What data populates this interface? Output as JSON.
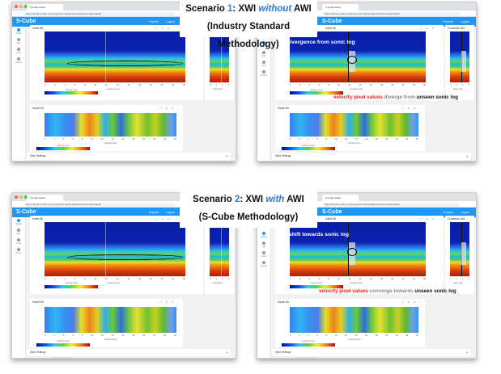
{
  "captions": [
    {
      "line1": {
        "pre": "Scenario ",
        "num": "1",
        "mid": ": XWI ",
        "em": "without",
        "post": " AWI"
      },
      "line2": "(Industry Standard Methodology)"
    },
    {
      "line1": {
        "pre": "Scenario ",
        "num": "2",
        "mid": ": XWI ",
        "em": "with",
        "post": " AWI"
      },
      "line2": "(S-Cube Methodology)"
    }
  ],
  "annotations": {
    "s1": {
      "title": "divergence from sonic log",
      "a": "velocity pixel values",
      "b": " diverge from ",
      "c": "unseen sonic log"
    },
    "s2": {
      "title": "shift towards sonic log",
      "a": "velocity pixel values",
      "b": " converge towards ",
      "c": "unseen sonic log"
    }
  },
  "app": {
    "browser_tab": "S-Cube Cloud",
    "url": "https://cloud.s-cube.com/projects/model/iteration/inline/crossline/depth",
    "logo": "S-Cube",
    "header_links": [
      "Projects",
      "Logout"
    ],
    "sidebar": [
      "Model",
      "Edit",
      "Tools",
      "Shares"
    ],
    "inline_title": "Inline 80",
    "crossline_title": "Crossline 440",
    "depth_title": "Depth 80",
    "inline_xlabel": "crossline (km)",
    "crossline_xlabel": "inline (km)",
    "depth_xlabel": "crossline (km)",
    "colorbar_label": "velocity (m/s)",
    "x_ticks": [
      "0",
      "2",
      "4",
      "6",
      "8",
      "10",
      "12",
      "14",
      "16",
      "18",
      "20",
      "22",
      "24",
      "26"
    ],
    "crossline_ticks": [
      "0",
      "1",
      "2",
      "3"
    ],
    "tools": "⤢ ⊕ ⊖ ⋮",
    "slice_settings": "Slice Settings",
    "slice_tabs": [
      "SEC-FWI",
      "SEC-AWI",
      "SEC-FWI after AWI"
    ]
  },
  "windows": [
    {
      "id": "s1-no-sonic",
      "active_tab": 0
    },
    {
      "id": "s1-sonic",
      "active_tab": 0
    },
    {
      "id": "s2-no-sonic",
      "active_tab": 1
    },
    {
      "id": "s2-sonic",
      "active_tab": 1
    }
  ],
  "colors": {
    "header": "#2196f3",
    "highlight_red": "#f02020",
    "scenario_number": "#2b7bd0"
  }
}
